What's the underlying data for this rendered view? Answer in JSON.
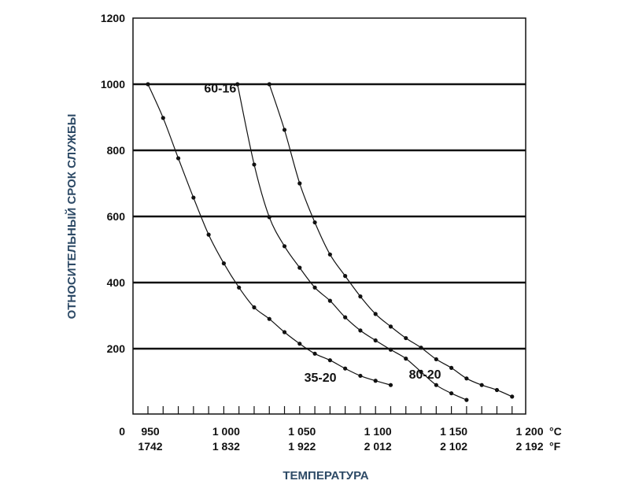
{
  "chart_data": {
    "type": "line",
    "ylabel": "ОТНОСИТЕЛЬНЫЙ СРОК СЛУЖБЫ",
    "xlabel": "ТЕМПЕРАТУРА",
    "ylim": [
      0,
      1200
    ],
    "xlim": [
      940,
      1200
    ],
    "y_ticks": [
      {
        "value": 0,
        "label": "0"
      },
      {
        "value": 200,
        "label": "200"
      },
      {
        "value": 400,
        "label": "400"
      },
      {
        "value": 600,
        "label": "600"
      },
      {
        "value": 800,
        "label": "800"
      },
      {
        "value": 1000,
        "label": "1000"
      },
      {
        "value": 1200,
        "label": "1200"
      }
    ],
    "gridlines_y": [
      200,
      400,
      600,
      800,
      1000
    ],
    "x_minor_ticks": [
      950,
      960,
      970,
      980,
      990,
      1000,
      1010,
      1020,
      1030,
      1040,
      1050,
      1060,
      1070,
      1080,
      1090,
      1100,
      1110,
      1120,
      1130,
      1140,
      1150,
      1160,
      1170,
      1180,
      1190
    ],
    "x_ticks": [
      {
        "value": 950,
        "c": "950",
        "f": "1742"
      },
      {
        "value": 1000,
        "c": "1 000",
        "f": "1 832"
      },
      {
        "value": 1050,
        "c": "1 050",
        "f": "1 922"
      },
      {
        "value": 1100,
        "c": "1 100",
        "f": "2 012"
      },
      {
        "value": 1150,
        "c": "1 150",
        "f": "2 102"
      },
      {
        "value": 1200,
        "c": "1 200",
        "f": "2 192"
      }
    ],
    "x_unit_c": "°C",
    "x_unit_f": "°F",
    "series": [
      {
        "name": "35-20",
        "label_at": {
          "x": 1053,
          "y": 100
        },
        "points": [
          [
            950,
            1000
          ],
          [
            960,
            898
          ],
          [
            970,
            776
          ],
          [
            980,
            657
          ],
          [
            990,
            545
          ],
          [
            1000,
            458
          ],
          [
            1010,
            385
          ],
          [
            1020,
            325
          ],
          [
            1030,
            290
          ],
          [
            1040,
            250
          ],
          [
            1050,
            215
          ],
          [
            1060,
            185
          ],
          [
            1070,
            165
          ],
          [
            1080,
            140
          ],
          [
            1090,
            118
          ],
          [
            1100,
            103
          ],
          [
            1110,
            90
          ]
        ]
      },
      {
        "name": "60-16",
        "label_at": {
          "x": 987,
          "y": 975
        },
        "points": [
          [
            1009,
            1000
          ],
          [
            1020,
            757
          ],
          [
            1030,
            598
          ],
          [
            1040,
            510
          ],
          [
            1050,
            445
          ],
          [
            1060,
            385
          ],
          [
            1070,
            345
          ],
          [
            1080,
            295
          ],
          [
            1090,
            255
          ],
          [
            1100,
            225
          ],
          [
            1110,
            197
          ],
          [
            1120,
            170
          ],
          [
            1130,
            130
          ],
          [
            1140,
            90
          ],
          [
            1150,
            65
          ],
          [
            1160,
            45
          ]
        ]
      },
      {
        "name": "80-20",
        "label_at": {
          "x": 1122,
          "y": 110
        },
        "points": [
          [
            1030,
            1000
          ],
          [
            1040,
            862
          ],
          [
            1050,
            700
          ],
          [
            1060,
            582
          ],
          [
            1070,
            485
          ],
          [
            1080,
            420
          ],
          [
            1090,
            358
          ],
          [
            1100,
            305
          ],
          [
            1110,
            267
          ],
          [
            1120,
            232
          ],
          [
            1130,
            203
          ],
          [
            1140,
            168
          ],
          [
            1150,
            142
          ],
          [
            1160,
            110
          ],
          [
            1170,
            90
          ],
          [
            1180,
            75
          ],
          [
            1190,
            55
          ]
        ]
      }
    ]
  }
}
